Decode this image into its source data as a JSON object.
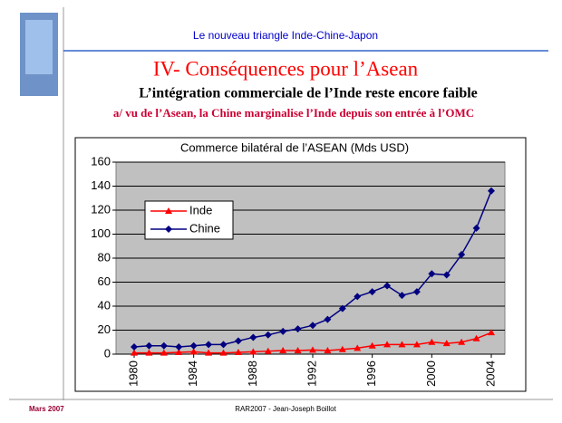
{
  "header": {
    "text": "Le nouveau triangle Inde-Chine-Japon"
  },
  "title": "IV- Conséquences pour l’Asean",
  "subtitle": "L’intégration commerciale de l’Inde reste encore faible",
  "subheading": "a/ vu de l’Asean, la Chine marginalise l’Inde depuis son entrée à l’OMC",
  "footer": {
    "date": "Mars 2007",
    "source": "RAR2007 - Jean-Joseph Boillot"
  },
  "chart_data": {
    "type": "line",
    "title": "Commerce bilatéral de l’ASEAN (Mds USD)",
    "x": [
      1980,
      1981,
      1982,
      1983,
      1984,
      1985,
      1986,
      1987,
      1988,
      1989,
      1990,
      1991,
      1992,
      1993,
      1994,
      1995,
      1996,
      1997,
      1998,
      1999,
      2000,
      2001,
      2002,
      2003,
      2004
    ],
    "series": [
      {
        "name": "Inde",
        "color": "#ff0000",
        "marker": "triangle",
        "values": [
          1,
          1,
          1,
          1.5,
          2,
          1,
          1,
          1.5,
          2,
          2.5,
          3,
          3,
          3.5,
          3,
          4,
          5,
          7,
          8,
          8,
          8,
          10,
          9,
          10,
          13,
          18
        ]
      },
      {
        "name": "Chine",
        "color": "#000080",
        "marker": "diamond",
        "values": [
          6,
          7,
          7,
          6,
          7,
          8,
          8,
          11,
          14,
          16,
          19,
          21,
          24,
          29,
          38,
          48,
          52,
          57,
          49,
          52,
          67,
          66,
          83,
          105,
          136
        ]
      }
    ],
    "xlim": [
      1980,
      2004
    ],
    "xticks": [
      1980,
      1984,
      1988,
      1992,
      1996,
      2000,
      2004
    ],
    "ylim": [
      0,
      160
    ],
    "yticks": [
      0,
      20,
      40,
      60,
      80,
      100,
      120,
      140,
      160
    ],
    "grid": true,
    "legend": "center left",
    "plot_background": "#c0c0c0"
  }
}
